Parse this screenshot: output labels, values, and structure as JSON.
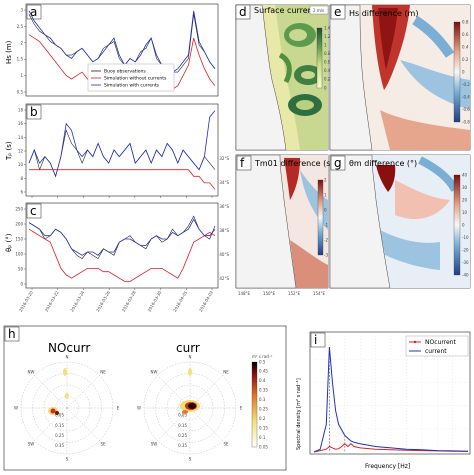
{
  "colors": {
    "obs": "#222222",
    "without": "#e02020",
    "with": "#2030c0",
    "land": "#f2f2f2",
    "diverging_low": "#1f5fa8",
    "diverging_high": "#b21e20"
  },
  "panels": {
    "a": {
      "letter": "a",
      "ylabel": "Hs (m)",
      "yticks": [
        "3",
        "2.5",
        "2",
        "1.5",
        "1",
        "0.5"
      ]
    },
    "b": {
      "letter": "b",
      "ylabel": "Tₚ (s)",
      "yticks": [
        "18",
        "16",
        "14",
        "12",
        "10",
        "8",
        "6"
      ]
    },
    "c": {
      "letter": "c",
      "ylabel": "θₚ (°)",
      "yticks": [
        "250",
        "200",
        "150",
        "100",
        "50",
        "0"
      ]
    },
    "d": {
      "letter": "d",
      "title": "Surface currents",
      "scale_label": "2 m/s",
      "cb_ticks": [
        "1.4",
        "1.2",
        "1",
        "0.8",
        "0.6",
        "0.4",
        "0.2",
        "0"
      ]
    },
    "e": {
      "letter": "e",
      "title": "Hs difference (m)",
      "cb_ticks": [
        "0.8",
        "0.6",
        "0.4",
        "0.2",
        "0",
        "-0.2",
        "-0.4",
        "-0.6",
        "-0.8"
      ]
    },
    "f": {
      "letter": "f",
      "title": "Tm01 difference (s)",
      "cb_ticks": [
        "2",
        "1",
        "0",
        "-1",
        "-2",
        "-3"
      ]
    },
    "g": {
      "letter": "g",
      "title": "θm difference (°)",
      "cb_ticks": [
        "40",
        "30",
        "20",
        "10",
        "0",
        "-10",
        "-20",
        "-30",
        "-40"
      ]
    },
    "h": {
      "letter": "h",
      "left_title": "NOcurr",
      "right_title": "curr",
      "rings": [
        "0.35",
        "0.25",
        "0.15",
        "0.05"
      ],
      "compass": [
        "N",
        "NE",
        "E",
        "SE",
        "S",
        "SW",
        "W",
        "NW"
      ],
      "cb_ticks": [
        "0.5",
        "0.45",
        "0.4",
        "0.35",
        "0.3",
        "0.25",
        "0.2",
        "0.15",
        "0.1",
        "0.05"
      ],
      "cb_label": "m² s rad⁻¹"
    },
    "i": {
      "letter": "i",
      "xlabel": "Frequency [Hz]",
      "ylabel": "Spectral density [m² s rad⁻¹]"
    }
  },
  "legend": {
    "items": [
      "Buoy observations",
      "Simulation without currents",
      "Simulation with currents"
    ]
  },
  "map_lat_ticks": [
    "32°S",
    "34°S",
    "36°S",
    "38°S"
  ],
  "map_lat_ticks_f": [
    "32°S",
    "34°S",
    "36°S",
    "38°S",
    "40°S",
    "42°S"
  ],
  "map_lon_ticks": [
    "148°E",
    "150°E",
    "152°E",
    "154°E"
  ],
  "date_ticks": [
    "2016-03-20",
    "2016-03-22",
    "2016-03-24",
    "2016-03-26",
    "2016-03-28",
    "2016-03-30",
    "2016-04-01",
    "2016-04-03"
  ],
  "chart_data": [
    {
      "type": "line",
      "id": "a",
      "ylabel": "Hs (m)",
      "ylim": [
        0.5,
        3.2
      ],
      "x": [
        0,
        1,
        2,
        3,
        4,
        5,
        6,
        7,
        8,
        9,
        10,
        11,
        12,
        13,
        14,
        15,
        16,
        17,
        18,
        19,
        20,
        21,
        22,
        23,
        24,
        25,
        26,
        27,
        28,
        29,
        30,
        31,
        32,
        33,
        34,
        35
      ],
      "series": [
        {
          "name": "Buoy observations",
          "values": [
            2.9,
            2.6,
            2.4,
            2.3,
            2.1,
            2.0,
            1.9,
            1.7,
            1.7,
            1.8,
            1.9,
            1.7,
            1.5,
            1.6,
            1.9,
            2.0,
            2.1,
            1.6,
            1.4,
            1.6,
            1.5,
            1.8,
            1.9,
            2.2,
            1.6,
            1.4,
            1.3,
            1.2,
            1.2,
            1.4,
            1.6,
            2.9,
            2.0,
            1.8,
            1.5,
            1.3
          ]
        },
        {
          "name": "Simulation without currents",
          "values": [
            2.3,
            2.2,
            2.1,
            1.9,
            1.7,
            1.5,
            1.3,
            1.1,
            1.0,
            1.1,
            1.2,
            1.0,
            0.9,
            0.9,
            1.0,
            1.3,
            1.4,
            1.1,
            0.9,
            0.9,
            0.8,
            0.8,
            1.0,
            1.3,
            1.0,
            0.8,
            0.7,
            0.7,
            0.8,
            1.1,
            1.4,
            2.2,
            1.7,
            1.3,
            1.0,
            0.8
          ]
        },
        {
          "name": "Simulation with currents",
          "values": [
            3.0,
            2.7,
            2.5,
            2.3,
            2.2,
            2.0,
            1.9,
            1.7,
            1.6,
            1.8,
            1.9,
            1.7,
            1.5,
            1.6,
            1.8,
            2.0,
            2.2,
            1.7,
            1.4,
            1.6,
            1.5,
            1.7,
            2.0,
            2.2,
            1.7,
            1.4,
            1.3,
            1.2,
            1.3,
            1.5,
            1.7,
            3.0,
            2.1,
            1.8,
            1.5,
            1.3
          ]
        }
      ]
    },
    {
      "type": "line",
      "id": "b",
      "ylabel": "Tₚ (s)",
      "ylim": [
        5,
        19
      ],
      "x": [
        0,
        1,
        2,
        3,
        4,
        5,
        6,
        7,
        8,
        9,
        10,
        11,
        12,
        13,
        14,
        15,
        16,
        17,
        18,
        19,
        20,
        21,
        22,
        23,
        24,
        25,
        26,
        27,
        28,
        29,
        30,
        31,
        32,
        33,
        34,
        35
      ],
      "series": [
        {
          "name": "Buoy observations",
          "values": [
            10,
            12,
            9,
            11,
            10,
            8,
            11,
            15,
            13,
            12,
            10,
            12,
            11,
            13,
            11,
            10,
            12,
            11,
            12,
            13,
            10,
            11,
            12,
            10,
            12,
            11,
            13,
            12,
            10,
            12,
            11,
            10,
            9,
            11,
            10,
            9
          ]
        },
        {
          "name": "Simulation without currents",
          "values": [
            9,
            9,
            9,
            9,
            9,
            9,
            9,
            9,
            9,
            9,
            9,
            9,
            9,
            9,
            9,
            9,
            9,
            9,
            9,
            9,
            9,
            9,
            9,
            9,
            9,
            9,
            9,
            9,
            9,
            9,
            9,
            8,
            8,
            7,
            7,
            6
          ]
        },
        {
          "name": "Simulation with currents",
          "values": [
            10,
            12,
            10,
            11,
            10,
            8,
            11,
            16,
            15,
            12,
            11,
            12,
            11,
            13,
            11,
            10,
            12,
            11,
            12,
            13,
            10,
            11,
            12,
            10,
            12,
            11,
            13,
            12,
            10,
            12,
            11,
            10,
            9,
            11,
            17,
            18
          ]
        }
      ]
    },
    {
      "type": "line",
      "id": "c",
      "ylabel": "θₚ (°)",
      "ylim": [
        0,
        260
      ],
      "x": [
        0,
        1,
        2,
        3,
        4,
        5,
        6,
        7,
        8,
        9,
        10,
        11,
        12,
        13,
        14,
        15,
        16,
        17,
        18,
        19,
        20,
        21,
        22,
        23,
        24,
        25,
        26,
        27,
        28,
        29,
        30,
        31,
        32,
        33,
        34,
        35
      ],
      "series": [
        {
          "name": "Buoy observations",
          "values": [
            200,
            190,
            180,
            150,
            160,
            180,
            170,
            150,
            120,
            100,
            90,
            110,
            100,
            90,
            120,
            110,
            100,
            140,
            150,
            160,
            140,
            130,
            120,
            150,
            160,
            140,
            150,
            180,
            160,
            170,
            190,
            220,
            180,
            160,
            150,
            190
          ]
        },
        {
          "name": "Simulation without currents",
          "values": [
            180,
            170,
            160,
            150,
            140,
            100,
            60,
            40,
            30,
            40,
            50,
            60,
            60,
            60,
            50,
            50,
            40,
            30,
            20,
            20,
            30,
            40,
            50,
            60,
            60,
            60,
            50,
            40,
            30,
            60,
            100,
            140,
            150,
            160,
            170,
            160
          ]
        },
        {
          "name": "Simulation with currents",
          "values": [
            200,
            190,
            180,
            160,
            160,
            180,
            170,
            150,
            120,
            110,
            100,
            110,
            110,
            100,
            120,
            110,
            110,
            140,
            150,
            150,
            140,
            130,
            130,
            150,
            160,
            150,
            150,
            170,
            160,
            170,
            180,
            210,
            180,
            160,
            160,
            180
          ]
        }
      ]
    },
    {
      "type": "line",
      "id": "i",
      "xlabel": "Frequency [Hz]",
      "ylabel": "Spectral density [m² s rad⁻¹]",
      "xlim": [
        0,
        0.5
      ],
      "ylim": [
        0,
        0.42
      ],
      "x": [
        0.0,
        0.02,
        0.04,
        0.05,
        0.06,
        0.07,
        0.08,
        0.09,
        0.1,
        0.11,
        0.12,
        0.13,
        0.15,
        0.2,
        0.25,
        0.3,
        0.35,
        0.4,
        0.45,
        0.5
      ],
      "series": [
        {
          "name": "NOcurrent",
          "values": [
            0.0,
            0.005,
            0.01,
            0.02,
            0.015,
            0.01,
            0.012,
            0.02,
            0.03,
            0.02,
            0.03,
            0.02,
            0.015,
            0.01,
            0.008,
            0.006,
            0.005,
            0.004,
            0.003,
            0.002
          ]
        },
        {
          "name": "current",
          "values": [
            0.0,
            0.01,
            0.1,
            0.38,
            0.25,
            0.15,
            0.1,
            0.08,
            0.06,
            0.05,
            0.04,
            0.035,
            0.03,
            0.02,
            0.015,
            0.01,
            0.008,
            0.005,
            0.004,
            0.003
          ]
        }
      ]
    }
  ]
}
